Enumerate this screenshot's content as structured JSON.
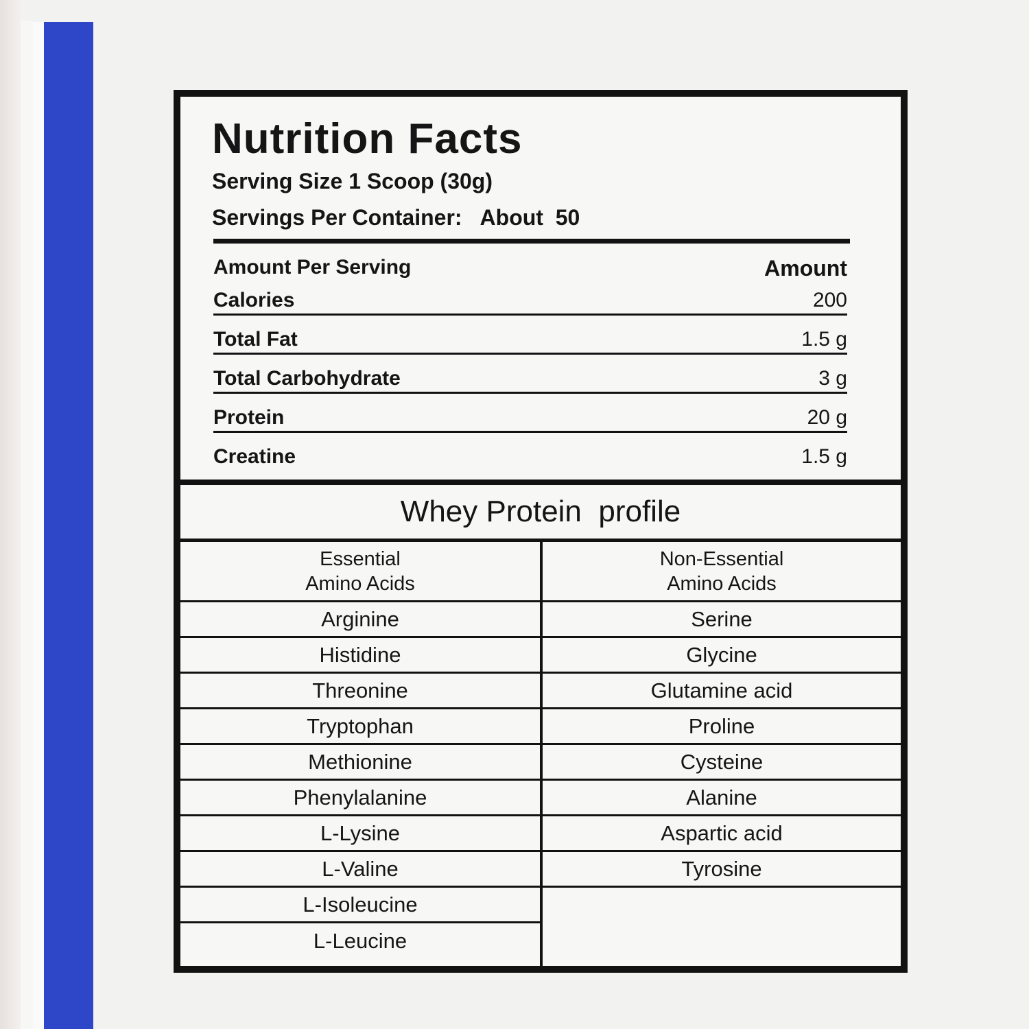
{
  "nutrition": {
    "title": "Nutrition Facts",
    "serving_size": "Serving Size 1 Scoop (30g)",
    "servings_label": "Servings Per Container:",
    "servings_value": "About  50",
    "header_label": "Amount Per Serving",
    "header_amount": "Amount",
    "rows": [
      {
        "label": "Calories",
        "value": "200"
      },
      {
        "label": "Total Fat",
        "value": "1.5 g"
      },
      {
        "label": "Total Carbohydrate",
        "value": "3 g"
      },
      {
        "label": "Protein",
        "value": "20 g"
      },
      {
        "label": "Creatine",
        "value": "1.5 g"
      }
    ]
  },
  "profile": {
    "title": "Whey Protein  profile",
    "essential_header": "Essential\nAmino Acids",
    "non_essential_header": "Non-Essential\nAmino Acids",
    "essential": [
      "Arginine",
      "Histidine",
      "Threonine",
      "Tryptophan",
      "Methionine",
      "Phenylalanine",
      "L-Lysine",
      "L-Valine",
      "L-Isoleucine",
      "L-Leucine"
    ],
    "non_essential": [
      "Serine",
      "Glycine",
      "Glutamine acid",
      "Proline",
      "Cysteine",
      "Alanine",
      "Aspartic acid",
      "Tyrosine"
    ]
  },
  "colors": {
    "stripe": "#2e47c9",
    "ink": "#121212",
    "paper": "#f7f7f6"
  }
}
